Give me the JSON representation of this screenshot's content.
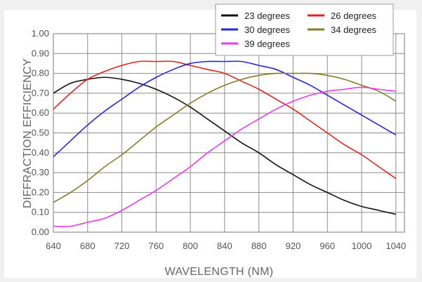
{
  "chart_data": {
    "type": "line",
    "title": "",
    "xlabel": "WAVELENGTH (NM)",
    "ylabel": "DIFFRACTION EFFICIENCY",
    "xlim": [
      640,
      1050
    ],
    "ylim": [
      0,
      1.0
    ],
    "x_ticks": [
      "640",
      "680",
      "720",
      "760",
      "800",
      "840",
      "880",
      "920",
      "960",
      "1000",
      "1040"
    ],
    "y_ticks": [
      "0.00",
      "0.10",
      "0.20",
      "0.30",
      "0.40",
      "0.50",
      "0.60",
      "0.70",
      "0.80",
      "0.90",
      "1.00"
    ],
    "grid": true,
    "legend_position": "top-right",
    "x": [
      640,
      660,
      680,
      700,
      720,
      740,
      760,
      780,
      800,
      820,
      840,
      860,
      880,
      900,
      920,
      940,
      960,
      980,
      1000,
      1020,
      1040
    ],
    "series": [
      {
        "name": "23 degrees",
        "color": "#111111",
        "values": [
          0.7,
          0.75,
          0.77,
          0.78,
          0.77,
          0.75,
          0.72,
          0.68,
          0.63,
          0.57,
          0.51,
          0.45,
          0.4,
          0.34,
          0.29,
          0.24,
          0.2,
          0.16,
          0.13,
          0.11,
          0.09
        ]
      },
      {
        "name": "26 degrees",
        "color": "#e8211b",
        "values": [
          0.62,
          0.7,
          0.77,
          0.81,
          0.84,
          0.86,
          0.86,
          0.86,
          0.84,
          0.82,
          0.8,
          0.76,
          0.72,
          0.67,
          0.62,
          0.56,
          0.5,
          0.44,
          0.39,
          0.33,
          0.27
        ]
      },
      {
        "name": "30 degrees",
        "color": "#2424e8",
        "values": [
          0.38,
          0.46,
          0.54,
          0.61,
          0.67,
          0.73,
          0.78,
          0.82,
          0.85,
          0.86,
          0.86,
          0.86,
          0.84,
          0.82,
          0.78,
          0.74,
          0.69,
          0.64,
          0.59,
          0.54,
          0.49
        ]
      },
      {
        "name": "34 degrees",
        "color": "#7f7f28",
        "values": [
          0.15,
          0.2,
          0.26,
          0.33,
          0.39,
          0.46,
          0.53,
          0.59,
          0.65,
          0.7,
          0.74,
          0.77,
          0.79,
          0.8,
          0.8,
          0.8,
          0.79,
          0.77,
          0.74,
          0.71,
          0.66
        ]
      },
      {
        "name": "39 degrees",
        "color": "#ee38ee",
        "values": [
          0.03,
          0.03,
          0.05,
          0.07,
          0.11,
          0.16,
          0.21,
          0.27,
          0.33,
          0.4,
          0.46,
          0.52,
          0.57,
          0.62,
          0.66,
          0.69,
          0.71,
          0.72,
          0.73,
          0.72,
          0.71
        ]
      }
    ]
  }
}
